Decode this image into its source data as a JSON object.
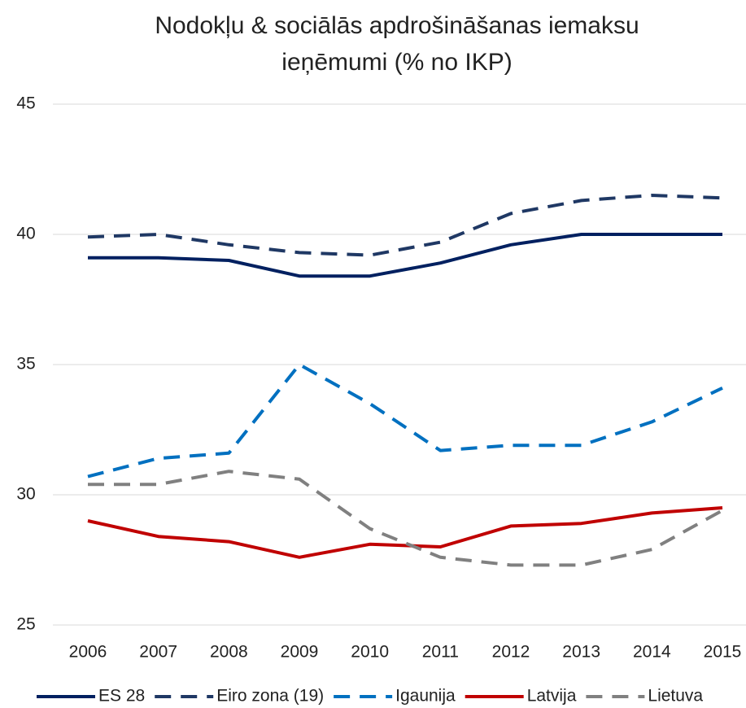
{
  "chart_data": {
    "type": "line",
    "title": [
      "Nodokļu & sociālās apdrošināšanas iemaksu",
      "ieņēmumi (% no IKP)"
    ],
    "categories": [
      "2006",
      "2007",
      "2008",
      "2009",
      "2010",
      "2011",
      "2012",
      "2013",
      "2014",
      "2015"
    ],
    "ylim": [
      25,
      45
    ],
    "yticks": [
      25,
      30,
      35,
      40,
      45
    ],
    "grid": true,
    "legend": "bottom",
    "series": [
      {
        "name": "ES 28",
        "color": "#002060",
        "dash": false,
        "values": [
          39.1,
          39.1,
          39.0,
          38.4,
          38.4,
          38.9,
          39.6,
          40.0,
          40.0,
          40.0
        ]
      },
      {
        "name": "Eiro zona (19)",
        "color": "#1f3864",
        "dash": true,
        "values": [
          39.9,
          40.0,
          39.6,
          39.3,
          39.2,
          39.7,
          40.8,
          41.3,
          41.5,
          41.4
        ]
      },
      {
        "name": "Igaunija",
        "color": "#0070c0",
        "dash": true,
        "values": [
          30.7,
          31.4,
          31.6,
          35.0,
          33.5,
          31.7,
          31.9,
          31.9,
          32.8,
          34.1
        ]
      },
      {
        "name": "Latvija",
        "color": "#c00000",
        "dash": false,
        "values": [
          29.0,
          28.4,
          28.2,
          27.6,
          28.1,
          28.0,
          28.8,
          28.9,
          29.3,
          29.5
        ]
      },
      {
        "name": "Lietuva",
        "color": "#808080",
        "dash": true,
        "values": [
          30.4,
          30.4,
          30.9,
          30.6,
          28.7,
          27.6,
          27.3,
          27.3,
          27.9,
          29.4
        ]
      }
    ]
  }
}
